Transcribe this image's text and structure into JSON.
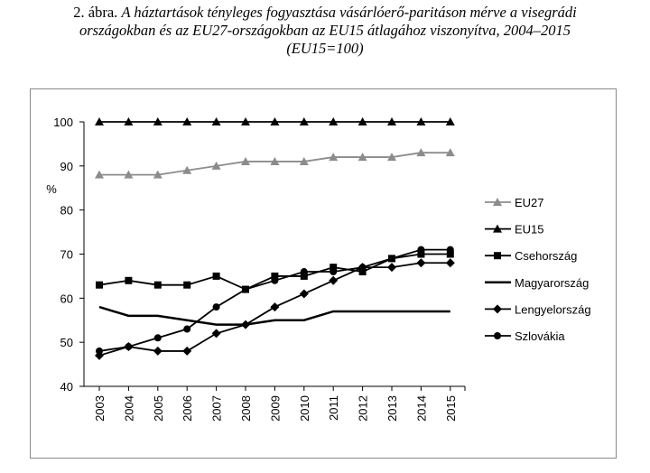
{
  "caption": {
    "number": "2. ábra.",
    "title_line1": "A háztartások tényleges fogyasztása vásárlóerő-paritáson mérve a visegrádi",
    "title_line2": "országokban és az EU27-országokban az EU15 átlagához viszonyítva, 2004–2015",
    "title_line3": "(EU15=100)"
  },
  "chart_data": {
    "type": "line",
    "x": [
      "2003",
      "2004",
      "2005",
      "2006",
      "2007",
      "2008",
      "2009",
      "2010",
      "2011",
      "2012",
      "2013",
      "2014",
      "2015"
    ],
    "ylabel": "%",
    "ylim": [
      40,
      100
    ],
    "yticks": [
      40,
      50,
      60,
      70,
      80,
      90,
      100
    ],
    "grid": false,
    "legend_position": "right",
    "series": [
      {
        "name": "EU27",
        "color": "#8c8c8c",
        "marker": "triangle",
        "values": [
          88,
          88,
          88,
          89,
          90,
          91,
          91,
          91,
          92,
          92,
          92,
          93,
          93
        ]
      },
      {
        "name": "EU15",
        "color": "#000000",
        "marker": "triangle",
        "values": [
          100,
          100,
          100,
          100,
          100,
          100,
          100,
          100,
          100,
          100,
          100,
          100,
          100
        ]
      },
      {
        "name": "Csehország",
        "color": "#000000",
        "marker": "square",
        "values": [
          63,
          64,
          63,
          63,
          65,
          62,
          65,
          65,
          67,
          66,
          69,
          70,
          70
        ]
      },
      {
        "name": "Magyarország",
        "color": "#000000",
        "marker": "none",
        "values": [
          58,
          56,
          56,
          55,
          54,
          54,
          55,
          55,
          57,
          57,
          57,
          57,
          57
        ]
      },
      {
        "name": "Lengyelország",
        "color": "#000000",
        "marker": "diamond",
        "values": [
          47,
          49,
          48,
          48,
          52,
          54,
          58,
          61,
          64,
          67,
          67,
          68,
          68
        ]
      },
      {
        "name": "Szlovákia",
        "color": "#000000",
        "marker": "circle",
        "values": [
          48,
          49,
          51,
          53,
          58,
          62,
          64,
          66,
          66,
          67,
          69,
          71,
          71
        ]
      }
    ]
  }
}
